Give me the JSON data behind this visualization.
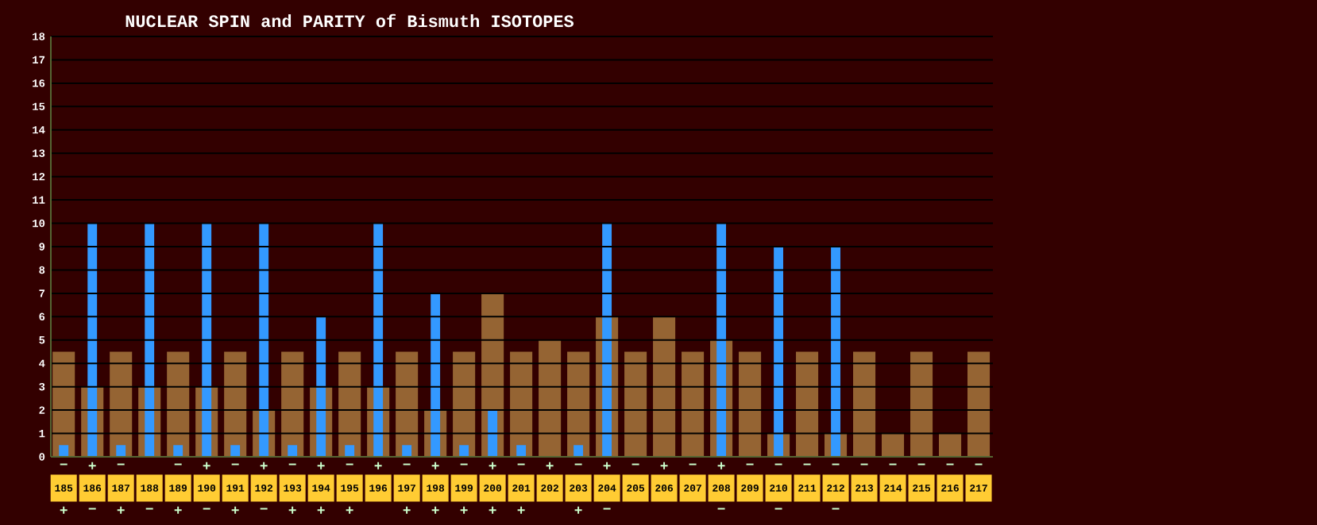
{
  "chart_data": {
    "type": "bar",
    "title": "NUCLEAR SPIN and PARITY of Bismuth ISOTOPES",
    "categories": [
      "185",
      "186",
      "187",
      "188",
      "189",
      "190",
      "191",
      "192",
      "193",
      "194",
      "195",
      "196",
      "197",
      "198",
      "199",
      "200",
      "201",
      "202",
      "203",
      "204",
      "205",
      "206",
      "207",
      "208",
      "209",
      "210",
      "211",
      "212",
      "213",
      "214",
      "215",
      "216",
      "217"
    ],
    "series": [
      {
        "color": "#956433",
        "values": [
          4.5,
          3,
          4.5,
          3,
          4.5,
          3,
          4.5,
          2,
          4.5,
          3,
          4.5,
          3,
          4.5,
          2,
          4.5,
          7,
          4.5,
          5,
          4.5,
          6,
          4.5,
          6,
          4.5,
          5,
          4.5,
          1,
          4.5,
          1,
          4.5,
          1,
          4.5,
          1,
          4.5
        ],
        "value_labels": [
          "−",
          "+",
          "−",
          null,
          "−",
          "+",
          "−",
          "+",
          "−",
          "+",
          "−",
          "+",
          "−",
          "+",
          "−",
          "+",
          "−",
          "+",
          "−",
          "+",
          "−",
          "+",
          "−",
          "+",
          "−",
          "−",
          "−",
          "−",
          "−",
          "−",
          "−",
          "−",
          "−"
        ]
      },
      {
        "color": "#3399ff",
        "values": [
          0.5,
          10,
          0.5,
          10,
          0.5,
          10,
          0.5,
          10,
          0.5,
          6,
          0.5,
          10,
          0.5,
          7,
          0.5,
          2,
          0.5,
          null,
          0.5,
          10,
          null,
          null,
          null,
          10,
          null,
          9,
          null,
          9,
          null,
          null,
          null,
          null,
          null
        ],
        "value_labels": [
          "+",
          "−",
          "+",
          "−",
          "+",
          "−",
          "+",
          "−",
          "+",
          "+",
          "+",
          null,
          "+",
          "+",
          "+",
          "+",
          "+",
          null,
          "+",
          "−",
          null,
          null,
          null,
          "−",
          null,
          "−",
          null,
          "−",
          null,
          null,
          null,
          null,
          null
        ]
      }
    ],
    "ylim": [
      0,
      18
    ],
    "yticks": [
      0,
      1,
      2,
      3,
      4,
      5,
      6,
      7,
      8,
      9,
      10,
      11,
      12,
      13,
      14,
      15,
      16,
      17,
      18
    ],
    "grid": "y"
  }
}
